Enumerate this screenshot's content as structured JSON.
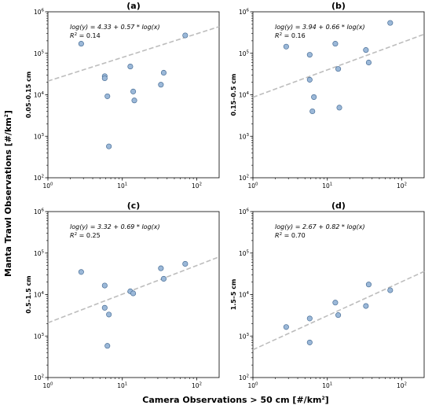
{
  "figure": {
    "xlabel_main": "Camera Observations > 50 cm [#/km",
    "xlabel_sup": "2",
    "xlabel_end": "]",
    "ylabel_main": "Manta Trawl Observations [#/km",
    "ylabel_sup": "2",
    "ylabel_end": "]"
  },
  "colors": {
    "marker_fill": "#9bb8d8",
    "marker_edge": "#4a6f97",
    "fit_line": "#bdbdbd"
  },
  "chart_data": [
    {
      "type": "scatter",
      "panel": "a",
      "title": "(a)",
      "ylabel": "0.05–0.15 cm",
      "xscale": "log",
      "yscale": "log",
      "xlim": [
        1,
        200
      ],
      "ylim": [
        100,
        1000000
      ],
      "xticks": [
        {
          "v": 1,
          "b": "10",
          "e": "0"
        },
        {
          "v": 10,
          "b": "10",
          "e": "1"
        },
        {
          "v": 100,
          "b": "10",
          "e": "2"
        }
      ],
      "yticks": [
        {
          "v": 100,
          "b": "10",
          "e": "2"
        },
        {
          "v": 1000,
          "b": "10",
          "e": "3"
        },
        {
          "v": 10000,
          "b": "10",
          "e": "4"
        },
        {
          "v": 100000,
          "b": "10",
          "e": "5"
        },
        {
          "v": 1000000,
          "b": "10",
          "e": "6"
        }
      ],
      "fit": {
        "intercept": 4.33,
        "slope": 0.57
      },
      "eq_text": "log(y) = 4.33 + 0.57 * log(x)",
      "r2_text": "= 0.14",
      "x": [
        2.8,
        5.8,
        5.8,
        6.3,
        6.6,
        12.8,
        14.0,
        14.5,
        33.0,
        36.0,
        70.0
      ],
      "y": [
        170000,
        28000,
        25000,
        9200,
        570,
        48000,
        12000,
        7300,
        17500,
        34000,
        270000
      ]
    },
    {
      "type": "scatter",
      "panel": "b",
      "title": "(b)",
      "ylabel": "0.15–0.5 cm",
      "xscale": "log",
      "yscale": "log",
      "xlim": [
        1,
        200
      ],
      "ylim": [
        100,
        1000000
      ],
      "xticks": [
        {
          "v": 1,
          "b": "10",
          "e": "0"
        },
        {
          "v": 10,
          "b": "10",
          "e": "1"
        },
        {
          "v": 100,
          "b": "10",
          "e": "2"
        }
      ],
      "yticks": [
        {
          "v": 100,
          "b": "10",
          "e": "2"
        },
        {
          "v": 1000,
          "b": "10",
          "e": "3"
        },
        {
          "v": 10000,
          "b": "10",
          "e": "4"
        },
        {
          "v": 100000,
          "b": "10",
          "e": "5"
        },
        {
          "v": 1000000,
          "b": "10",
          "e": "6"
        }
      ],
      "fit": {
        "intercept": 3.94,
        "slope": 0.66
      },
      "eq_text": "log(y) = 3.94 + 0.66 * log(x)",
      "r2_text": "= 0.16",
      "x": [
        2.8,
        5.8,
        5.8,
        6.3,
        6.6,
        12.8,
        14.0,
        14.5,
        33.0,
        36.0,
        70.0
      ],
      "y": [
        145000,
        92000,
        23000,
        4000,
        8800,
        170000,
        42000,
        4900,
        120000,
        60000,
        540000
      ]
    },
    {
      "type": "scatter",
      "panel": "c",
      "title": "(c)",
      "ylabel": "0.5–1.5 cm",
      "xscale": "log",
      "yscale": "log",
      "xlim": [
        1,
        200
      ],
      "ylim": [
        100,
        1000000
      ],
      "xticks": [
        {
          "v": 1,
          "b": "10",
          "e": "0"
        },
        {
          "v": 10,
          "b": "10",
          "e": "1"
        },
        {
          "v": 100,
          "b": "10",
          "e": "2"
        }
      ],
      "yticks": [
        {
          "v": 100,
          "b": "10",
          "e": "2"
        },
        {
          "v": 1000,
          "b": "10",
          "e": "3"
        },
        {
          "v": 10000,
          "b": "10",
          "e": "4"
        },
        {
          "v": 100000,
          "b": "10",
          "e": "5"
        },
        {
          "v": 1000000,
          "b": "10",
          "e": "6"
        }
      ],
      "fit": {
        "intercept": 3.32,
        "slope": 0.69
      },
      "eq_text": "log(y) = 3.32 + 0.69 * log(x)",
      "r2_text": "= 0.25",
      "x": [
        2.8,
        5.8,
        5.8,
        6.3,
        6.6,
        12.8,
        14.0,
        33.0,
        36.0,
        70.0
      ],
      "y": [
        35000,
        16500,
        4800,
        580,
        3300,
        12000,
        10700,
        43000,
        24000,
        55000
      ]
    },
    {
      "type": "scatter",
      "panel": "d",
      "title": "(d)",
      "ylabel": "1.5–5 cm",
      "xscale": "log",
      "yscale": "log",
      "xlim": [
        1,
        200
      ],
      "ylim": [
        100,
        1000000
      ],
      "xticks": [
        {
          "v": 1,
          "b": "10",
          "e": "0"
        },
        {
          "v": 10,
          "b": "10",
          "e": "1"
        },
        {
          "v": 100,
          "b": "10",
          "e": "2"
        }
      ],
      "yticks": [
        {
          "v": 100,
          "b": "10",
          "e": "2"
        },
        {
          "v": 1000,
          "b": "10",
          "e": "3"
        },
        {
          "v": 10000,
          "b": "10",
          "e": "4"
        },
        {
          "v": 100000,
          "b": "10",
          "e": "5"
        },
        {
          "v": 1000000,
          "b": "10",
          "e": "6"
        }
      ],
      "fit": {
        "intercept": 2.67,
        "slope": 0.82
      },
      "eq_text": "log(y) = 2.67 + 0.82 * log(x)",
      "r2_text": "= 0.70",
      "x": [
        2.8,
        5.8,
        5.8,
        12.8,
        14.0,
        33.0,
        36.0,
        70.0
      ],
      "y": [
        1650,
        2650,
        700,
        6400,
        3200,
        5300,
        17500,
        12700
      ]
    }
  ]
}
